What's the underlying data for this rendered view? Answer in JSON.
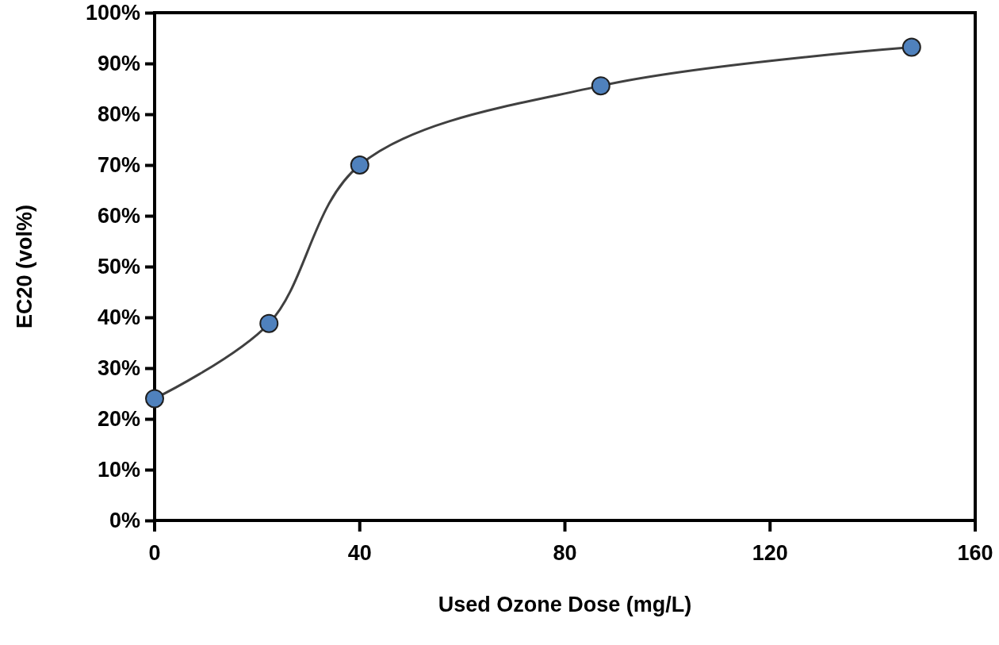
{
  "chart_data": {
    "type": "line",
    "xlabel": "Used Ozone Dose (mg/L)",
    "ylabel": "EC20 (vol%)",
    "x": [
      0,
      22.3,
      40,
      87,
      147.6
    ],
    "series": [
      {
        "color": "#4f81bd",
        "values": [
          24,
          38.8,
          70,
          85.6,
          93.2
        ]
      }
    ],
    "xlim": [
      0,
      160
    ],
    "xticks": [
      0,
      40,
      80,
      120,
      160
    ],
    "ylim": [
      0,
      100
    ],
    "yticks": [
      {
        "value": 0,
        "label": "0%"
      },
      {
        "value": 10,
        "label": "10%"
      },
      {
        "value": 20,
        "label": "20%"
      },
      {
        "value": 30,
        "label": "30%"
      },
      {
        "value": 40,
        "label": "40%"
      },
      {
        "value": 50,
        "label": "50%"
      },
      {
        "value": 60,
        "label": "60%"
      },
      {
        "value": 70,
        "label": "70%"
      },
      {
        "value": 80,
        "label": "80%"
      },
      {
        "value": 90,
        "label": "90%"
      },
      {
        "value": 100,
        "label": "100%"
      }
    ],
    "marker": "circle",
    "line_style": "solid"
  }
}
